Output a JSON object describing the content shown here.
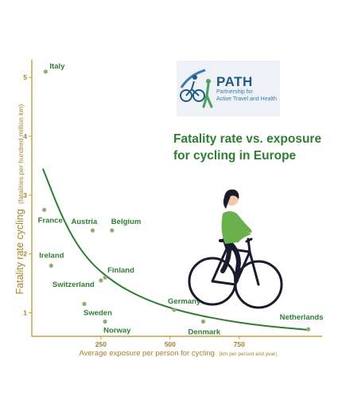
{
  "logo": {
    "name": "PATH",
    "tagline_line1": "Partnership for",
    "tagline_line2": "Active Travel and Health"
  },
  "chart_data": {
    "type": "scatter",
    "title_line1": "Fatality rate vs. exposure",
    "title_line2": "for cycling in Europe",
    "xlabel": "Average exposure per person for cycling",
    "xlabel_unit": "(km per person and year)",
    "ylabel": "Fatality rate cycling",
    "ylabel_unit": "(fatalities per hundred million km)",
    "xlim": [
      0,
      1050
    ],
    "ylim": [
      0.6,
      5.3
    ],
    "x_ticks": [
      250,
      500,
      750
    ],
    "y_ticks": [
      1,
      2,
      3,
      4,
      5
    ],
    "points": [
      {
        "label": "Italy",
        "x": 50,
        "y": 5.1
      },
      {
        "label": "France",
        "x": 45,
        "y": 2.75
      },
      {
        "label": "Austria",
        "x": 220,
        "y": 2.4
      },
      {
        "label": "Belgium",
        "x": 290,
        "y": 2.4
      },
      {
        "label": "Ireland",
        "x": 70,
        "y": 1.8
      },
      {
        "label": "Switzerland",
        "x": 250,
        "y": 1.55
      },
      {
        "label": "Finland",
        "x": 265,
        "y": 1.6
      },
      {
        "label": "Sweden",
        "x": 190,
        "y": 1.15
      },
      {
        "label": "Norway",
        "x": 265,
        "y": 0.85
      },
      {
        "label": "Germany",
        "x": 515,
        "y": 1.05
      },
      {
        "label": "Denmark",
        "x": 620,
        "y": 0.85
      },
      {
        "label": "Netherlands",
        "x": 1000,
        "y": 0.72
      }
    ],
    "trend": {
      "x": [
        40,
        120,
        200,
        300,
        400,
        500,
        600,
        700,
        800,
        900,
        1000
      ],
      "y": [
        3.45,
        2.5,
        1.9,
        1.5,
        1.25,
        1.08,
        0.96,
        0.87,
        0.8,
        0.75,
        0.71
      ]
    },
    "colors": {
      "points": "#8fad70",
      "trend": "#2e7d32",
      "axis": "#c7a248",
      "labels": "#2e7d32",
      "axis_text": "#a5832b",
      "cyclist_top": "#6ab04c",
      "cyclist_dark": "#1b1b2e"
    }
  }
}
